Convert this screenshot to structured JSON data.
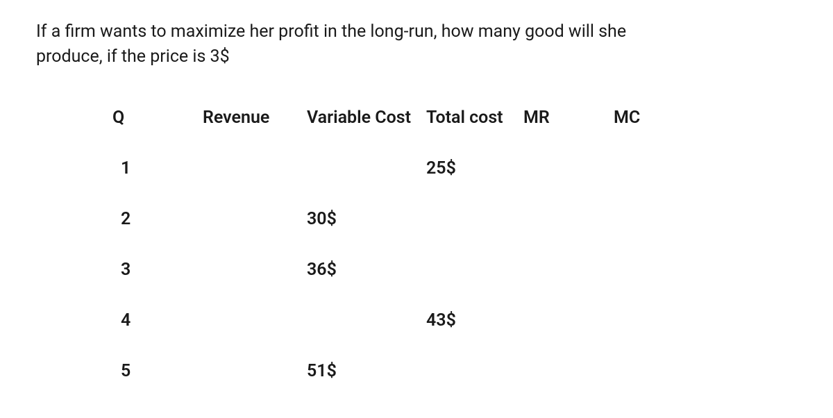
{
  "question": {
    "line1": "If a firm wants to maximize her profit in the long-run, how many good will she",
    "line2": "produce, if the price is 3$"
  },
  "table": {
    "columns": [
      "Q",
      "Revenue",
      "Variable Cost",
      "Total cost",
      "MR",
      "MC"
    ],
    "rows": [
      {
        "q": "1",
        "revenue": "",
        "varcost": "",
        "totalcost": "25$",
        "mr": "",
        "mc": ""
      },
      {
        "q": "2",
        "revenue": "",
        "varcost": "30$",
        "totalcost": "",
        "mr": "",
        "mc": ""
      },
      {
        "q": "3",
        "revenue": "",
        "varcost": "36$",
        "totalcost": "",
        "mr": "",
        "mc": ""
      },
      {
        "q": "4",
        "revenue": "",
        "varcost": "",
        "totalcost": "43$",
        "mr": "",
        "mc": ""
      },
      {
        "q": "5",
        "revenue": "",
        "varcost": "51$",
        "totalcost": "",
        "mr": "",
        "mc": ""
      }
    ]
  },
  "styling": {
    "background_color": "#ffffff",
    "text_color": "#1a1a1a",
    "question_fontsize": 25,
    "header_fontsize": 25,
    "cell_fontsize": 25,
    "header_fontweight": 600,
    "cell_fontweight": 600,
    "row_spacing": 44
  }
}
